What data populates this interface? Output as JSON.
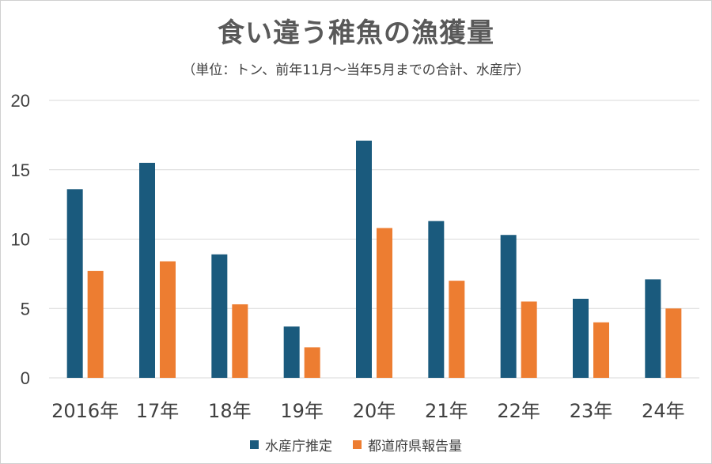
{
  "title": "食い違う稚魚の漁獲量",
  "subtitle": "（単位：トン、前年11月～当年5月までの合計、水産庁）",
  "colors": {
    "series1": "#1a5a7d",
    "series2": "#ed7d31",
    "grid": "#d9d9d9",
    "axis_text": "#404040"
  },
  "chart_data": {
    "type": "bar",
    "title": "食い違う稚魚の漁獲量",
    "subtitle": "（単位：トン、前年11月～当年5月までの合計、水産庁）",
    "categories": [
      "2016年",
      "17年",
      "18年",
      "19年",
      "20年",
      "21年",
      "22年",
      "23年",
      "24年"
    ],
    "series": [
      {
        "name": "水産庁推定",
        "values": [
          13.6,
          15.5,
          8.9,
          3.7,
          17.1,
          11.3,
          10.3,
          5.7,
          7.1
        ]
      },
      {
        "name": "都道府県報告量",
        "values": [
          7.7,
          8.4,
          5.3,
          2.2,
          10.8,
          7.0,
          5.5,
          4.0,
          5.0
        ]
      }
    ],
    "yticks": [
      "0",
      "5",
      "10",
      "15",
      "20"
    ],
    "ylim": [
      0,
      20
    ],
    "grid": true,
    "legend_position": "bottom"
  }
}
